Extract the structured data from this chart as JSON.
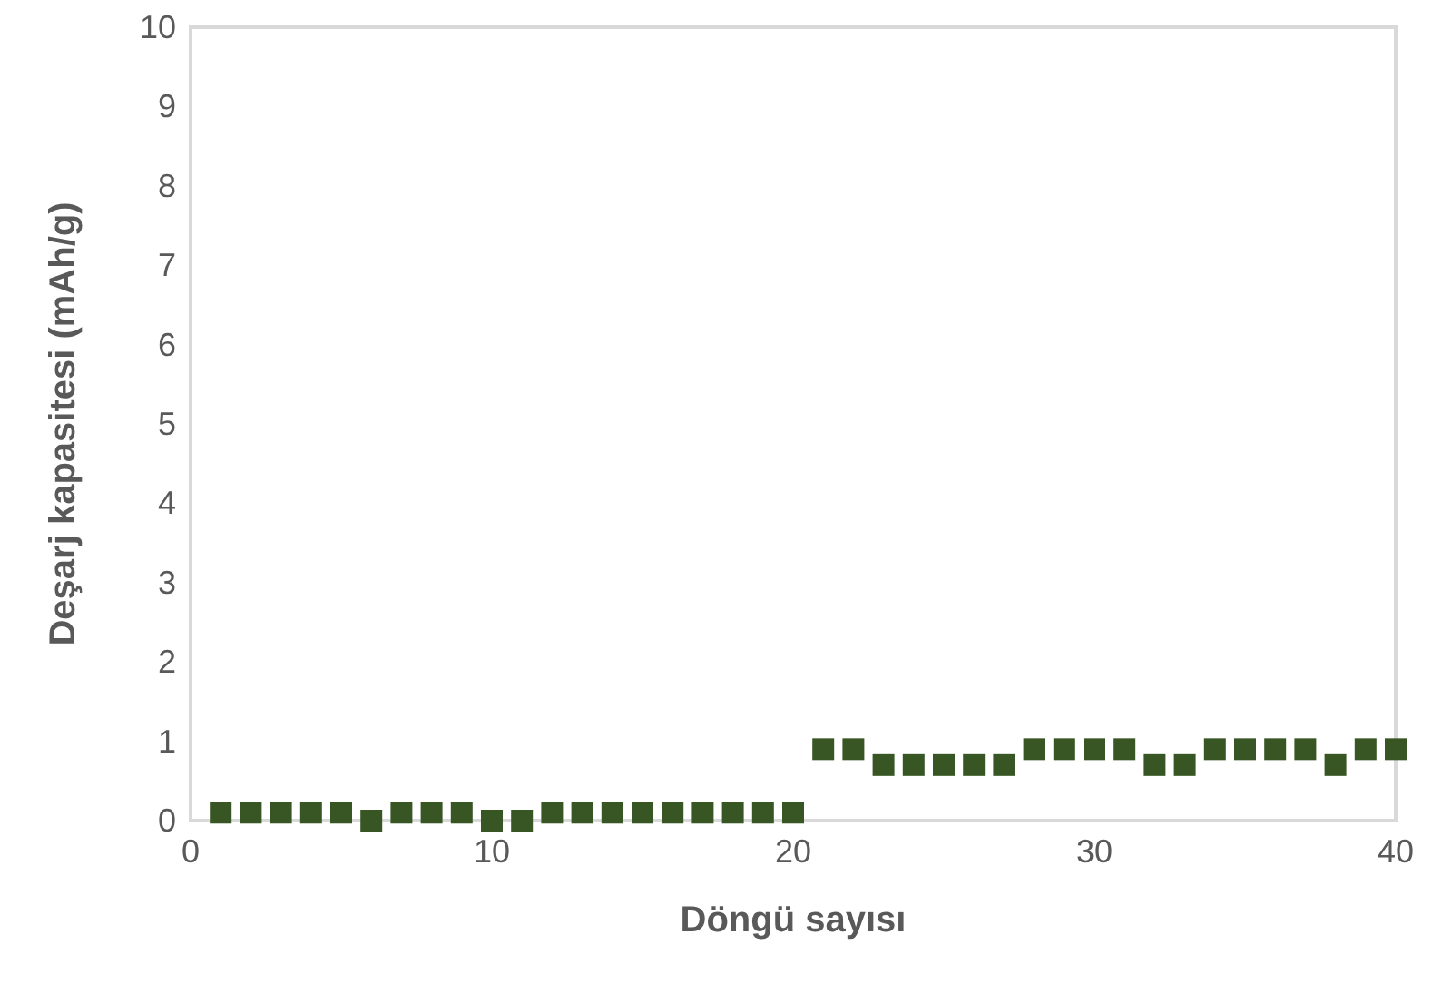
{
  "chart_data": {
    "type": "scatter",
    "xlabel": "Döngü sayısı",
    "ylabel": "Deşarj kapasitesi (mAh/g)",
    "x": [
      1,
      2,
      3,
      4,
      5,
      6,
      7,
      8,
      9,
      10,
      11,
      12,
      13,
      14,
      15,
      16,
      17,
      18,
      19,
      20,
      21,
      22,
      23,
      24,
      25,
      26,
      27,
      28,
      29,
      30,
      31,
      32,
      33,
      34,
      35,
      36,
      37,
      38,
      39,
      40
    ],
    "series": [
      {
        "color": "#375623",
        "values": [
          0.1,
          0.1,
          0.1,
          0.1,
          0.1,
          0.0,
          0.1,
          0.1,
          0.1,
          0.0,
          0.0,
          0.1,
          0.1,
          0.1,
          0.1,
          0.1,
          0.1,
          0.1,
          0.1,
          0.1,
          0.9,
          0.9,
          0.7,
          0.7,
          0.7,
          0.7,
          0.7,
          0.9,
          0.9,
          0.9,
          0.9,
          0.7,
          0.7,
          0.9,
          0.9,
          0.9,
          0.9,
          0.7,
          0.9,
          0.9
        ]
      }
    ],
    "xlim": [
      0,
      40
    ],
    "xticks": [
      0,
      10,
      20,
      30,
      40
    ],
    "ylim": [
      0,
      10
    ],
    "yticks": [
      0,
      1,
      2,
      3,
      4,
      5,
      6,
      7,
      8,
      9,
      10
    ],
    "grid": false,
    "marker": "square"
  }
}
